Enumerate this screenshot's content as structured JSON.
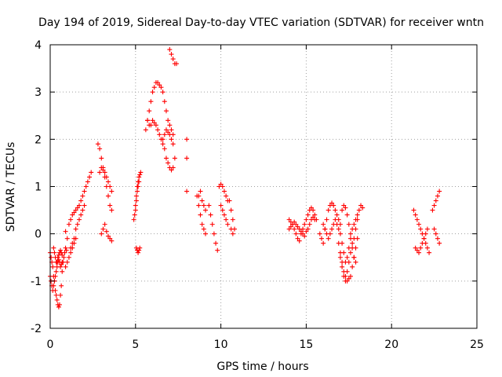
{
  "chart_data": {
    "type": "scatter",
    "title": "Day 194 of 2019, Sidereal Day-to-day VTEC variation (SDTVAR) for receiver wntn",
    "xlabel": "GPS time / hours",
    "ylabel": "SDTVAR / TECUs",
    "xlim": [
      0,
      25
    ],
    "ylim": [
      -2,
      4
    ],
    "xticks": [
      "0",
      "5",
      "10",
      "15",
      "20",
      "25"
    ],
    "yticks": [
      "-2",
      "-1",
      "0",
      "1",
      "2",
      "3",
      "4"
    ],
    "grid": true,
    "marker": "+",
    "color": "#ff0000",
    "series": [
      {
        "name": "SDTVAR",
        "x": [
          0.0,
          0.05,
          0.1,
          0.15,
          0.2,
          0.25,
          0.3,
          0.35,
          0.4,
          0.45,
          0.5,
          0.55,
          0.6,
          0.65,
          0.7,
          0.75,
          0.8,
          0.85,
          0.9,
          0.95,
          0.0,
          0.05,
          0.1,
          0.15,
          0.2,
          0.25,
          0.3,
          0.35,
          0.4,
          0.45,
          0.5,
          0.55,
          0.6,
          0.65,
          0.7,
          0.2,
          0.25,
          0.3,
          0.35,
          0.4,
          0.45,
          0.5,
          0.55,
          0.6,
          0.65,
          0.7,
          0.9,
          1.0,
          1.1,
          1.2,
          1.3,
          1.4,
          1.5,
          1.6,
          1.7,
          1.8,
          1.9,
          2.0,
          2.1,
          2.2,
          2.3,
          2.4,
          1.2,
          1.3,
          1.4,
          1.5,
          1.6,
          1.7,
          1.8,
          1.9,
          2.0,
          0.9,
          1.0,
          1.1,
          1.2,
          1.3,
          1.4,
          1.5,
          2.8,
          2.9,
          3.0,
          3.1,
          3.2,
          3.3,
          3.4,
          3.5,
          3.6,
          2.9,
          3.0,
          3.1,
          3.2,
          3.3,
          3.4,
          3.5,
          3.6,
          3.0,
          3.1,
          3.2,
          3.3,
          3.4,
          3.5,
          3.6,
          4.9,
          5.0,
          5.05,
          5.1,
          5.15,
          5.2,
          5.25,
          5.3,
          4.95,
          5.0,
          5.05,
          5.1,
          5.15,
          5.2,
          5.05,
          5.1,
          5.15,
          5.2,
          5.25,
          5.6,
          5.7,
          5.8,
          5.9,
          6.0,
          6.1,
          6.2,
          6.3,
          6.4,
          6.5,
          6.6,
          6.7,
          6.8,
          6.9,
          7.0,
          7.1,
          7.2,
          5.7,
          5.8,
          5.9,
          6.0,
          6.1,
          6.2,
          6.3,
          6.4,
          6.5,
          6.6,
          6.7,
          6.8,
          6.9,
          7.0,
          7.1,
          7.2,
          7.3,
          6.6,
          6.7,
          6.8,
          6.9,
          7.0,
          7.1,
          7.2,
          7.0,
          7.1,
          7.2,
          7.3,
          7.4,
          8.0,
          8.0,
          8.0,
          8.6,
          8.7,
          8.8,
          8.9,
          9.0,
          9.1,
          8.7,
          8.8,
          8.9,
          9.0,
          9.1,
          9.3,
          9.4,
          9.5,
          9.6,
          9.7,
          9.8,
          9.9,
          10.0,
          10.1,
          10.2,
          10.3,
          10.4,
          10.0,
          10.1,
          10.2,
          10.3,
          10.4,
          10.5,
          10.6,
          10.7,
          10.6,
          10.7,
          10.8,
          14.0,
          14.1,
          14.2,
          14.3,
          14.4,
          14.5,
          14.6,
          14.7,
          14.8,
          14.9,
          15.0,
          15.1,
          15.2,
          15.3,
          15.4,
          15.5,
          15.6,
          14.0,
          14.1,
          14.2,
          14.3,
          14.4,
          14.5,
          14.6,
          14.7,
          14.8,
          14.9,
          15.0,
          15.1,
          15.2,
          15.3,
          15.4,
          15.5,
          15.8,
          15.9,
          16.0,
          16.1,
          16.2,
          16.3,
          16.4,
          16.5,
          16.6,
          16.7,
          16.8,
          16.9,
          17.0,
          17.1,
          17.2,
          17.3,
          17.4,
          17.5,
          17.6,
          17.7,
          17.8,
          17.9,
          18.0,
          18.1,
          18.2,
          18.3,
          16.0,
          16.1,
          16.2,
          16.3,
          16.4,
          16.5,
          16.6,
          16.7,
          16.8,
          16.9,
          17.0,
          17.1,
          17.2,
          17.3,
          17.4,
          17.5,
          17.6,
          17.7,
          17.8,
          17.9,
          18.0,
          16.9,
          17.0,
          17.1,
          17.2,
          17.3,
          17.4,
          17.5,
          17.6,
          17.7,
          17.8,
          17.9,
          18.0,
          17.0,
          17.1,
          17.2,
          17.3,
          17.4,
          17.5,
          17.6,
          17.7,
          17.8,
          17.9,
          21.3,
          21.4,
          21.5,
          21.6,
          21.7,
          21.8,
          21.9,
          22.0,
          22.1,
          22.2,
          21.4,
          21.5,
          21.6,
          21.7,
          21.8,
          21.9,
          22.0,
          22.1,
          22.4,
          22.5,
          22.6,
          22.7,
          22.8,
          22.5,
          22.6,
          22.7,
          22.8
        ],
        "y": [
          -0.4,
          -0.5,
          -0.6,
          -0.7,
          -0.9,
          -1.0,
          -1.2,
          -1.3,
          -1.4,
          -1.5,
          -1.55,
          -1.5,
          -1.3,
          -1.1,
          -0.8,
          -0.6,
          -0.5,
          -0.4,
          -0.3,
          -0.35,
          -0.9,
          -1.0,
          -1.1,
          -1.2,
          -1.1,
          -1.0,
          -0.9,
          -0.8,
          -0.7,
          -0.6,
          -0.55,
          -0.6,
          -0.7,
          -0.65,
          -0.6,
          -0.3,
          -0.4,
          -0.5,
          -0.6,
          -0.6,
          -0.5,
          -0.45,
          -0.4,
          -0.35,
          -0.4,
          -0.45,
          0.05,
          -0.1,
          0.2,
          0.3,
          0.4,
          0.45,
          0.5,
          0.55,
          0.6,
          0.7,
          0.8,
          0.9,
          1.0,
          1.1,
          1.2,
          1.3,
          -0.3,
          -0.2,
          -0.1,
          0.1,
          0.2,
          0.3,
          0.4,
          0.5,
          0.6,
          -0.7,
          -0.6,
          -0.5,
          -0.4,
          -0.3,
          -0.2,
          -0.1,
          1.9,
          1.8,
          1.6,
          1.4,
          1.2,
          1.0,
          0.8,
          0.6,
          0.5,
          1.3,
          1.4,
          1.35,
          1.3,
          1.2,
          1.1,
          1.0,
          0.9,
          0.0,
          0.1,
          0.2,
          0.05,
          -0.05,
          -0.1,
          -0.15,
          0.3,
          0.6,
          0.8,
          1.0,
          1.1,
          1.2,
          1.25,
          1.3,
          0.4,
          0.5,
          0.7,
          0.9,
          1.0,
          1.1,
          -0.3,
          -0.35,
          -0.4,
          -0.35,
          -0.3,
          2.2,
          2.4,
          2.6,
          2.8,
          3.0,
          3.1,
          3.2,
          3.2,
          3.15,
          3.1,
          3.0,
          2.8,
          2.6,
          2.4,
          2.3,
          2.2,
          2.1,
          2.4,
          2.3,
          2.3,
          2.4,
          2.35,
          2.3,
          2.2,
          2.1,
          2.0,
          1.9,
          1.8,
          1.6,
          1.5,
          1.4,
          1.35,
          1.4,
          1.6,
          2.0,
          2.1,
          2.2,
          2.15,
          2.1,
          2.0,
          1.9,
          3.9,
          3.8,
          3.7,
          3.6,
          3.6,
          2.0,
          1.6,
          0.9,
          0.8,
          0.6,
          0.4,
          0.2,
          0.1,
          0.0,
          0.8,
          0.9,
          0.7,
          0.6,
          0.5,
          0.6,
          0.4,
          0.2,
          0.0,
          -0.2,
          -0.35,
          1.0,
          1.05,
          1.0,
          0.9,
          0.8,
          0.7,
          0.6,
          0.5,
          0.4,
          0.3,
          0.2,
          0.7,
          0.5,
          0.3,
          0.1,
          0.0,
          0.1,
          0.3,
          0.25,
          0.2,
          0.1,
          0.0,
          -0.1,
          -0.15,
          0.0,
          0.1,
          0.2,
          0.3,
          0.4,
          0.5,
          0.55,
          0.5,
          0.4,
          0.3,
          0.1,
          0.15,
          0.2,
          0.25,
          0.2,
          0.15,
          0.1,
          0.05,
          0.0,
          -0.05,
          0.05,
          0.1,
          0.2,
          0.3,
          0.35,
          0.3,
          0.0,
          -0.1,
          -0.2,
          0.1,
          0.3,
          0.5,
          0.6,
          0.65,
          0.6,
          0.5,
          0.4,
          0.3,
          0.2,
          0.5,
          0.6,
          0.55,
          0.4,
          0.2,
          0.0,
          -0.2,
          -0.1,
          0.1,
          0.3,
          0.5,
          0.6,
          0.55,
          0.2,
          0.1,
          0.0,
          -0.1,
          0.0,
          0.1,
          0.2,
          0.3,
          0.2,
          0.1,
          0.0,
          -0.2,
          -0.4,
          -0.6,
          -0.5,
          -0.3,
          -0.1,
          0.1,
          0.2,
          0.3,
          0.4,
          -0.2,
          -0.4,
          -0.6,
          -0.8,
          -0.9,
          -1.0,
          -0.95,
          -0.9,
          -0.7,
          -0.5,
          -0.3,
          -0.1,
          -0.5,
          -0.7,
          -0.9,
          -1.0,
          -0.8,
          -0.6,
          -0.4,
          -0.3,
          -0.5,
          -0.6,
          0.5,
          0.4,
          0.3,
          0.2,
          0.1,
          0.0,
          -0.1,
          -0.2,
          -0.3,
          -0.4,
          -0.3,
          -0.35,
          -0.4,
          -0.3,
          -0.2,
          -0.1,
          0.0,
          0.1,
          0.5,
          0.6,
          0.7,
          0.8,
          0.9,
          0.1,
          0.0,
          -0.1,
          -0.2
        ]
      }
    ]
  }
}
